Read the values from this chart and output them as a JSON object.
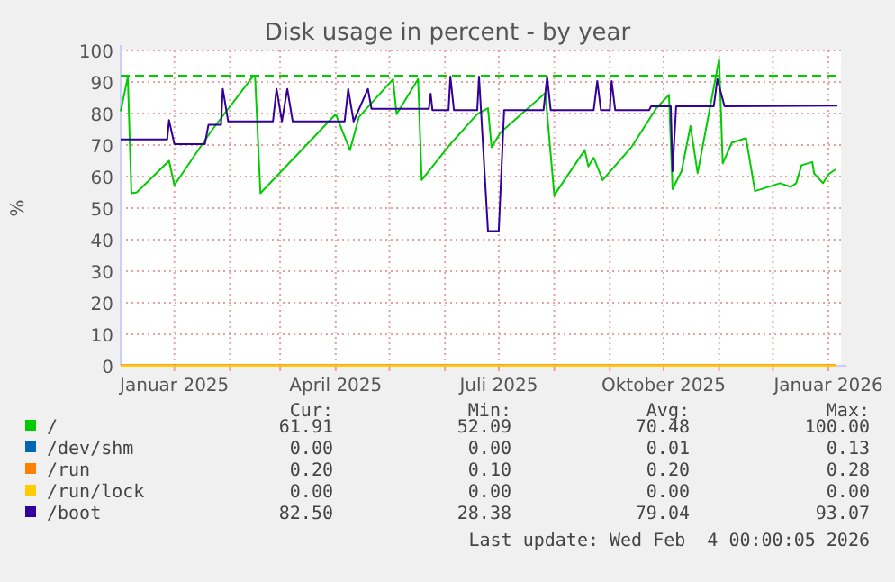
{
  "chart_data": {
    "type": "line",
    "title": "Disk usage in percent - by year",
    "ylabel": "%",
    "xlim": [
      "2024-12-02",
      "2026-01-08"
    ],
    "xticks": [
      {
        "value": "2025-01-01",
        "label": "Januar 2025"
      },
      {
        "value": "2025-02-01",
        "label": null
      },
      {
        "value": "2025-03-01",
        "label": null
      },
      {
        "value": "2025-04-01",
        "label": "April 2025"
      },
      {
        "value": "2025-05-01",
        "label": null
      },
      {
        "value": "2025-06-01",
        "label": null
      },
      {
        "value": "2025-07-01",
        "label": "Juli 2025"
      },
      {
        "value": "2025-08-01",
        "label": null
      },
      {
        "value": "2025-09-01",
        "label": null
      },
      {
        "value": "2025-10-01",
        "label": "Oktober 2025"
      },
      {
        "value": "2025-11-01",
        "label": null
      },
      {
        "value": "2025-12-01",
        "label": null
      },
      {
        "value": "2026-01-01",
        "label": "Januar 2026"
      }
    ],
    "ylim": [
      0,
      100
    ],
    "yticks": [
      0,
      10,
      20,
      30,
      40,
      50,
      60,
      70,
      80,
      90,
      100
    ],
    "grid": true,
    "legend": "bottom",
    "series": [
      {
        "name": "/",
        "color": "#00cc00",
        "x": [
          "2024-12-02",
          "2024-12-06",
          "2024-12-08",
          "2024-12-11",
          "2024-12-29",
          "2025-01-01",
          "2025-01-21",
          "2025-02-13",
          "2025-02-15",
          "2025-02-18",
          "2025-04-01",
          "2025-04-09",
          "2025-04-14",
          "2025-05-03",
          "2025-05-05",
          "2025-05-17",
          "2025-05-19",
          "2025-06-04",
          "2025-06-19",
          "2025-06-25",
          "2025-06-27",
          "2025-07-02",
          "2025-07-27",
          "2025-08-01",
          "2025-08-18",
          "2025-08-20",
          "2025-08-23",
          "2025-08-28",
          "2025-09-13",
          "2025-09-27",
          "2025-10-04",
          "2025-10-06",
          "2025-10-11",
          "2025-10-16",
          "2025-10-20",
          "2025-11-01",
          "2025-11-03",
          "2025-11-08",
          "2025-11-16",
          "2025-11-21",
          "2025-12-05",
          "2025-12-11",
          "2025-12-14",
          "2025-12-17",
          "2025-12-23",
          "2025-12-24",
          "2025-12-29",
          "2026-01-01",
          "2026-01-05"
        ],
        "values": [
          80.7,
          91.6,
          54.7,
          55,
          65,
          57.3,
          74,
          91.2,
          92,
          54.7,
          79.8,
          68.4,
          78.9,
          90.9,
          79.8,
          90.9,
          58.9,
          70.3,
          79.8,
          81.7,
          69.3,
          74,
          86.5,
          54.1,
          68.4,
          63.2,
          66,
          58.9,
          69.3,
          81.7,
          85.9,
          56,
          61.7,
          76,
          61.1,
          97.3,
          64.2,
          70.7,
          72.2,
          55.4,
          57.9,
          56.7,
          57.9,
          63.6,
          64.6,
          61,
          57.9,
          60.7,
          62.3
        ]
      },
      {
        "name": "/dev/shm",
        "color": "#0066b3"
      },
      {
        "name": "/run",
        "color": "#ff8000",
        "x": [
          "2024-12-02",
          "2026-01-05"
        ],
        "values": [
          0.2,
          0.2
        ]
      },
      {
        "name": "/run/lock",
        "color": "#ffcc00",
        "x": [
          "2024-12-02",
          "2026-01-05"
        ],
        "values": [
          0,
          0
        ]
      },
      {
        "name": "/boot",
        "color": "#330099",
        "x": [
          "2024-12-02",
          "2024-12-28",
          "2024-12-29",
          "2025-01-01",
          "2025-01-18",
          "2025-01-20",
          "2025-01-27",
          "2025-01-28",
          "2025-01-31",
          "2025-02-25",
          "2025-02-27",
          "2025-03-02",
          "2025-03-05",
          "2025-03-08",
          "2025-04-06",
          "2025-04-08",
          "2025-04-11",
          "2025-04-19",
          "2025-04-21",
          "2025-05-23",
          "2025-05-24",
          "2025-05-25",
          "2025-06-03",
          "2025-06-04",
          "2025-06-06",
          "2025-06-19",
          "2025-06-20",
          "2025-06-25",
          "2025-07-01",
          "2025-07-04",
          "2025-07-26",
          "2025-07-28",
          "2025-07-30",
          "2025-08-23",
          "2025-08-25",
          "2025-08-27",
          "2025-09-01",
          "2025-09-02",
          "2025-09-04",
          "2025-09-23",
          "2025-09-24",
          "2025-10-05",
          "2025-10-06",
          "2025-10-08",
          "2025-10-29",
          "2025-10-31",
          "2025-11-04",
          "2026-01-06"
        ],
        "values": [
          71.8,
          71.8,
          77.9,
          70.3,
          70.3,
          76.4,
          76.4,
          87.8,
          77.5,
          77.5,
          87.8,
          77.5,
          87.8,
          77.5,
          77.5,
          87.8,
          77.5,
          87.8,
          81.5,
          81.5,
          86.3,
          81.1,
          81.1,
          91.7,
          81.1,
          81.1,
          91.7,
          42.7,
          42.7,
          81.1,
          81.1,
          91.7,
          81.1,
          81.1,
          90.3,
          81.1,
          81.1,
          90.3,
          81.1,
          81.1,
          82.3,
          82.3,
          61.7,
          82.3,
          82.3,
          90.9,
          82.3,
          82.5
        ]
      }
    ],
    "ref_lines": [
      {
        "axis": "y",
        "value": 92,
        "color": "#00cc00",
        "line_style": "dashed"
      }
    ],
    "annotations": [
      "Cur:",
      "Min:",
      "Avg:",
      "Max:",
      "61.91",
      "52.09",
      "70.48",
      "100.00",
      "0.00",
      "0.00",
      "0.01",
      "0.13",
      "0.20",
      "0.10",
      "0.20",
      "0.28",
      "0.00",
      "0.00",
      "0.00",
      "0.00",
      "82.50",
      "28.38",
      "79.04",
      "93.07",
      "Last update: Wed Feb  4 00:00:05 2026"
    ]
  }
}
